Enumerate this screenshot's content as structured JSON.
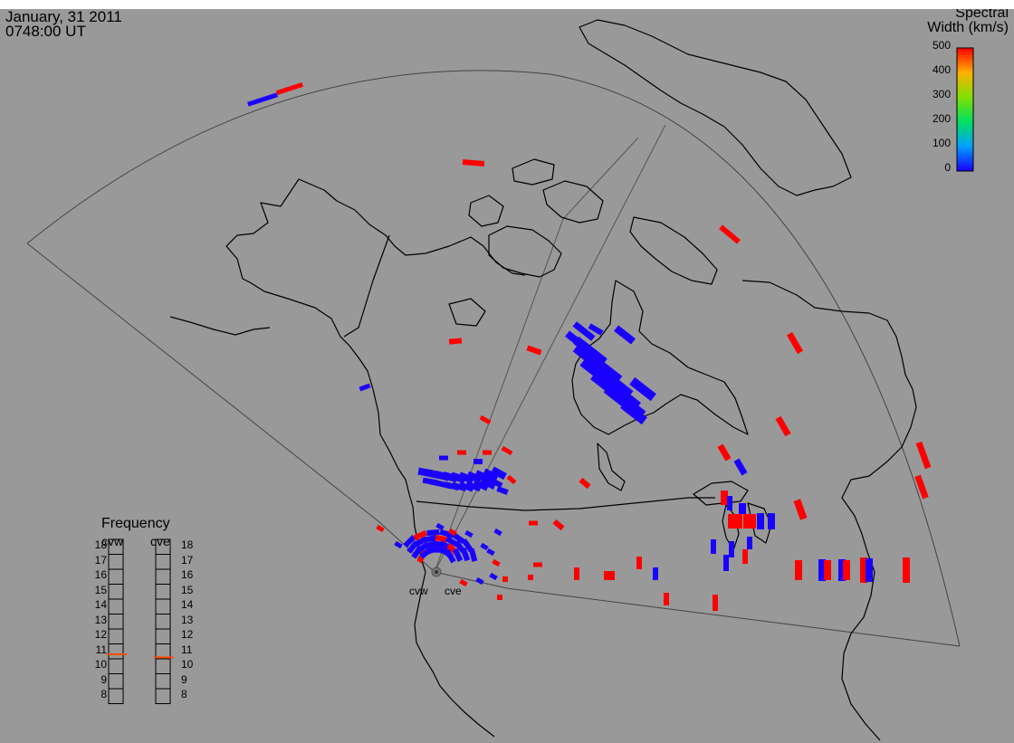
{
  "header": {
    "date": "January, 31 2011",
    "time": "0748:00 UT"
  },
  "colorbar": {
    "title_line1": "Spectral",
    "title_line2": "Width (km/s)",
    "ticks": [
      "500",
      "400",
      "300",
      "200",
      "100",
      "0"
    ],
    "min": 0,
    "max": 500
  },
  "frequency_panel": {
    "title": "Frequency",
    "radars": [
      {
        "name": "cvw",
        "frequency": 10.8
      },
      {
        "name": "cve",
        "frequency": 10.6
      }
    ],
    "scale": [
      "18",
      "17",
      "16",
      "15",
      "14",
      "13",
      "12",
      "11",
      "10",
      "9",
      "8"
    ]
  },
  "stations": [
    "cvw",
    "cve"
  ],
  "colors": {
    "background": "#999999",
    "low": "#1a00ff",
    "high": "#ff0000",
    "coast": "#000000",
    "fov": "#444444",
    "freq_marker": "#ff4a00"
  }
}
